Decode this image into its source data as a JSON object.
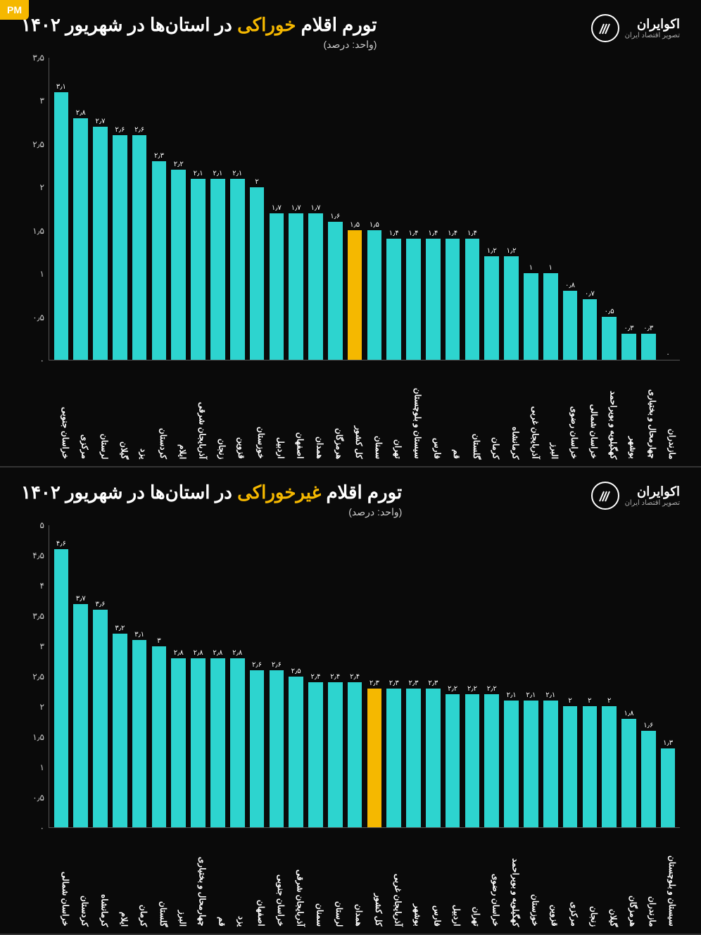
{
  "badge": "PM",
  "logo": {
    "name": "اکوایران",
    "tag": "تصویر اقتصاد ایران"
  },
  "chart1": {
    "type": "bar",
    "title_pre": "تورم اقلام ",
    "title_hl": "خوراکی",
    "title_post": " در استان‌ها در شهریور ۱۴۰۲",
    "subtitle": "(واحد: درصد)",
    "ymax": 3.5,
    "yticks": [
      "۰",
      "۰٫۵",
      "۱",
      "۱٫۵",
      "۲",
      "۲٫۵",
      "۳",
      "۳٫۵"
    ],
    "bar_color": "#2dd4cf",
    "highlight_color": "#f5b800",
    "bg": "#0a0a0a",
    "bars": [
      {
        "label": "خراسان جنوبی",
        "val": 3.1,
        "disp": "۳٫۱",
        "hl": false
      },
      {
        "label": "مرکزی",
        "val": 2.8,
        "disp": "۲٫۸",
        "hl": false
      },
      {
        "label": "لرستان",
        "val": 2.7,
        "disp": "۲٫۷",
        "hl": false
      },
      {
        "label": "گیلان",
        "val": 2.6,
        "disp": "۲٫۶",
        "hl": false
      },
      {
        "label": "یزد",
        "val": 2.6,
        "disp": "۲٫۶",
        "hl": false
      },
      {
        "label": "کردستان",
        "val": 2.3,
        "disp": "۲٫۳",
        "hl": false
      },
      {
        "label": "ایلام",
        "val": 2.2,
        "disp": "۲٫۲",
        "hl": false
      },
      {
        "label": "آذربایجان شرقی",
        "val": 2.1,
        "disp": "۲٫۱",
        "hl": false
      },
      {
        "label": "زنجان",
        "val": 2.1,
        "disp": "۲٫۱",
        "hl": false
      },
      {
        "label": "قزوین",
        "val": 2.1,
        "disp": "۲٫۱",
        "hl": false
      },
      {
        "label": "خوزستان",
        "val": 2.0,
        "disp": "۲",
        "hl": false
      },
      {
        "label": "اردبیل",
        "val": 1.7,
        "disp": "۱٫۷",
        "hl": false
      },
      {
        "label": "اصفهان",
        "val": 1.7,
        "disp": "۱٫۷",
        "hl": false
      },
      {
        "label": "همدان",
        "val": 1.7,
        "disp": "۱٫۷",
        "hl": false
      },
      {
        "label": "هرمزگان",
        "val": 1.6,
        "disp": "۱٫۶",
        "hl": false
      },
      {
        "label": "کل کشور",
        "val": 1.5,
        "disp": "۱٫۵",
        "hl": true
      },
      {
        "label": "سمنان",
        "val": 1.5,
        "disp": "۱٫۵",
        "hl": false
      },
      {
        "label": "تهران",
        "val": 1.4,
        "disp": "۱٫۴",
        "hl": false
      },
      {
        "label": "سیستان و بلوچستان",
        "val": 1.4,
        "disp": "۱٫۴",
        "hl": false
      },
      {
        "label": "فارس",
        "val": 1.4,
        "disp": "۱٫۴",
        "hl": false
      },
      {
        "label": "قم",
        "val": 1.4,
        "disp": "۱٫۴",
        "hl": false
      },
      {
        "label": "گلستان",
        "val": 1.4,
        "disp": "۱٫۴",
        "hl": false
      },
      {
        "label": "کرمان",
        "val": 1.2,
        "disp": "۱٫۲",
        "hl": false
      },
      {
        "label": "کرمانشاه",
        "val": 1.2,
        "disp": "۱٫۲",
        "hl": false
      },
      {
        "label": "آذربایجان غربی",
        "val": 1.0,
        "disp": "۱",
        "hl": false
      },
      {
        "label": "البرز",
        "val": 1.0,
        "disp": "۱",
        "hl": false
      },
      {
        "label": "خراسان رضوی",
        "val": 0.8,
        "disp": "۰٫۸",
        "hl": false
      },
      {
        "label": "خراسان شمالی",
        "val": 0.7,
        "disp": "۰٫۷",
        "hl": false
      },
      {
        "label": "کهگیلویه و بویراحمد",
        "val": 0.5,
        "disp": "۰٫۵",
        "hl": false
      },
      {
        "label": "بوشهر",
        "val": 0.3,
        "disp": "۰٫۳",
        "hl": false
      },
      {
        "label": "چهارمحال و بختیاری",
        "val": 0.3,
        "disp": "۰٫۳",
        "hl": false
      },
      {
        "label": "مازندران",
        "val": 0.0,
        "disp": "۰",
        "hl": false
      }
    ]
  },
  "chart2": {
    "type": "bar",
    "title_pre": "تورم اقلام ",
    "title_hl": "غیرخوراکی",
    "title_post": " در استان‌ها در شهریور ۱۴۰۲",
    "subtitle": "(واحد: درصد)",
    "ymax": 5.0,
    "yticks": [
      "۰",
      "۰٫۵",
      "۱",
      "۱٫۵",
      "۲",
      "۲٫۵",
      "۳",
      "۳٫۵",
      "۴",
      "۴٫۵",
      "۵"
    ],
    "bar_color": "#2dd4cf",
    "highlight_color": "#f5b800",
    "bg": "#0a0a0a",
    "bars": [
      {
        "label": "خراسان شمالی",
        "val": 4.6,
        "disp": "۴٫۶",
        "hl": false
      },
      {
        "label": "کردستان",
        "val": 3.7,
        "disp": "۳٫۷",
        "hl": false
      },
      {
        "label": "کرمانشاه",
        "val": 3.6,
        "disp": "۳٫۶",
        "hl": false
      },
      {
        "label": "ایلام",
        "val": 3.2,
        "disp": "۳٫۲",
        "hl": false
      },
      {
        "label": "کرمان",
        "val": 3.1,
        "disp": "۳٫۱",
        "hl": false
      },
      {
        "label": "گلستان",
        "val": 3.0,
        "disp": "۳",
        "hl": false
      },
      {
        "label": "البرز",
        "val": 2.8,
        "disp": "۲٫۸",
        "hl": false
      },
      {
        "label": "چهارمحال و بختیاری",
        "val": 2.8,
        "disp": "۲٫۸",
        "hl": false
      },
      {
        "label": "قم",
        "val": 2.8,
        "disp": "۲٫۸",
        "hl": false
      },
      {
        "label": "یزد",
        "val": 2.8,
        "disp": "۲٫۸",
        "hl": false
      },
      {
        "label": "اصفهان",
        "val": 2.6,
        "disp": "۲٫۶",
        "hl": false
      },
      {
        "label": "خراسان جنوبی",
        "val": 2.6,
        "disp": "۲٫۶",
        "hl": false
      },
      {
        "label": "آذربایجان شرقی",
        "val": 2.5,
        "disp": "۲٫۵",
        "hl": false
      },
      {
        "label": "سمنان",
        "val": 2.4,
        "disp": "۲٫۴",
        "hl": false
      },
      {
        "label": "لرستان",
        "val": 2.4,
        "disp": "۲٫۴",
        "hl": false
      },
      {
        "label": "همدان",
        "val": 2.4,
        "disp": "۲٫۴",
        "hl": false
      },
      {
        "label": "کل کشور",
        "val": 2.3,
        "disp": "۲٫۳",
        "hl": true
      },
      {
        "label": "آذربایجان غربی",
        "val": 2.3,
        "disp": "۲٫۳",
        "hl": false
      },
      {
        "label": "بوشهر",
        "val": 2.3,
        "disp": "۲٫۳",
        "hl": false
      },
      {
        "label": "فارس",
        "val": 2.3,
        "disp": "۲٫۳",
        "hl": false
      },
      {
        "label": "اردبیل",
        "val": 2.2,
        "disp": "۲٫۲",
        "hl": false
      },
      {
        "label": "تهران",
        "val": 2.2,
        "disp": "۲٫۲",
        "hl": false
      },
      {
        "label": "خراسان رضوی",
        "val": 2.2,
        "disp": "۲٫۲",
        "hl": false
      },
      {
        "label": "کهگیلویه و بویراحمد",
        "val": 2.1,
        "disp": "۲٫۱",
        "hl": false
      },
      {
        "label": "خوزستان",
        "val": 2.1,
        "disp": "۲٫۱",
        "hl": false
      },
      {
        "label": "قزوین",
        "val": 2.1,
        "disp": "۲٫۱",
        "hl": false
      },
      {
        "label": "مرکزی",
        "val": 2.0,
        "disp": "۲",
        "hl": false
      },
      {
        "label": "زنجان",
        "val": 2.0,
        "disp": "۲",
        "hl": false
      },
      {
        "label": "گیلان",
        "val": 2.0,
        "disp": "۲",
        "hl": false
      },
      {
        "label": "هرمزگان",
        "val": 1.8,
        "disp": "۱٫۸",
        "hl": false
      },
      {
        "label": "مازندران",
        "val": 1.6,
        "disp": "۱٫۶",
        "hl": false
      },
      {
        "label": "سیستان و بلوچستان",
        "val": 1.3,
        "disp": "۱٫۳",
        "hl": false
      }
    ]
  }
}
